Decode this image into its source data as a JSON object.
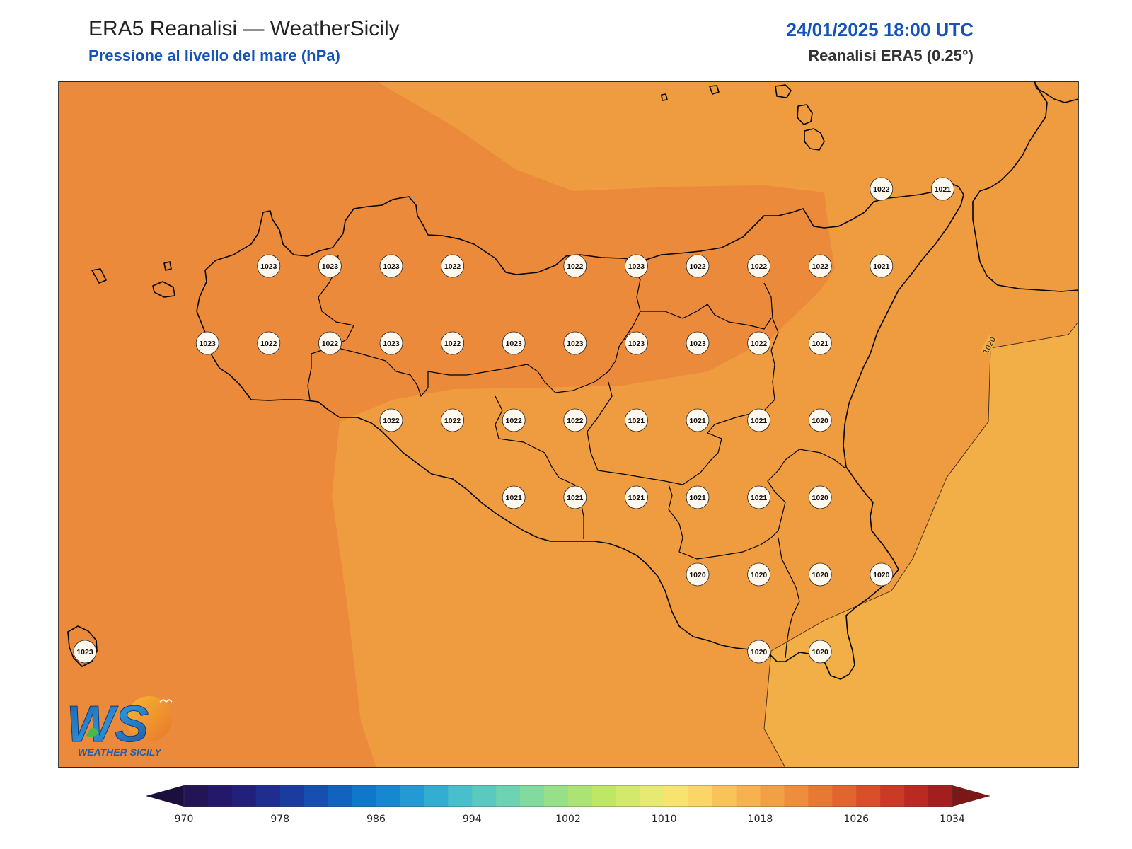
{
  "header": {
    "title": "ERA5 Reanalisi — WeatherSicily",
    "subtitle": "Pressione al livello del mare (hPa)",
    "datetime": "24/01/2025 18:00 UTC",
    "source": "Reanalisi ERA5 (0.25°)"
  },
  "map": {
    "region": "Sicily",
    "variable": "Mean sea level pressure",
    "units": "hPa",
    "contour_label": "1020",
    "fill_colors": {
      "1022_1024": "#eb8a3a",
      "1020_1022": "#ef9b40",
      "1018_1020": "#f2ae47"
    },
    "coastline_color": "#000000",
    "grid_values": [
      {
        "row": 0,
        "col": 13,
        "value": "1022"
      },
      {
        "row": 0,
        "col": 14,
        "value": "1021"
      },
      {
        "row": 1,
        "col": 3,
        "value": "1023"
      },
      {
        "row": 1,
        "col": 4,
        "value": "1023"
      },
      {
        "row": 1,
        "col": 5,
        "value": "1023"
      },
      {
        "row": 1,
        "col": 6,
        "value": "1022"
      },
      {
        "row": 1,
        "col": 8,
        "value": "1022"
      },
      {
        "row": 1,
        "col": 9,
        "value": "1023"
      },
      {
        "row": 1,
        "col": 10,
        "value": "1022"
      },
      {
        "row": 1,
        "col": 11,
        "value": "1022"
      },
      {
        "row": 1,
        "col": 12,
        "value": "1022"
      },
      {
        "row": 1,
        "col": 13,
        "value": "1021"
      },
      {
        "row": 2,
        "col": 2,
        "value": "1023"
      },
      {
        "row": 2,
        "col": 3,
        "value": "1022"
      },
      {
        "row": 2,
        "col": 4,
        "value": "1022"
      },
      {
        "row": 2,
        "col": 5,
        "value": "1023"
      },
      {
        "row": 2,
        "col": 6,
        "value": "1022"
      },
      {
        "row": 2,
        "col": 7,
        "value": "1023"
      },
      {
        "row": 2,
        "col": 8,
        "value": "1023"
      },
      {
        "row": 2,
        "col": 9,
        "value": "1023"
      },
      {
        "row": 2,
        "col": 10,
        "value": "1023"
      },
      {
        "row": 2,
        "col": 11,
        "value": "1022"
      },
      {
        "row": 2,
        "col": 12,
        "value": "1021"
      },
      {
        "row": 3,
        "col": 5,
        "value": "1022"
      },
      {
        "row": 3,
        "col": 6,
        "value": "1022"
      },
      {
        "row": 3,
        "col": 7,
        "value": "1022"
      },
      {
        "row": 3,
        "col": 8,
        "value": "1022"
      },
      {
        "row": 3,
        "col": 9,
        "value": "1021"
      },
      {
        "row": 3,
        "col": 10,
        "value": "1021"
      },
      {
        "row": 3,
        "col": 11,
        "value": "1021"
      },
      {
        "row": 3,
        "col": 12,
        "value": "1020"
      },
      {
        "row": 4,
        "col": 7,
        "value": "1021"
      },
      {
        "row": 4,
        "col": 8,
        "value": "1021"
      },
      {
        "row": 4,
        "col": 9,
        "value": "1021"
      },
      {
        "row": 4,
        "col": 10,
        "value": "1021"
      },
      {
        "row": 4,
        "col": 11,
        "value": "1021"
      },
      {
        "row": 4,
        "col": 12,
        "value": "1020"
      },
      {
        "row": 5,
        "col": 10,
        "value": "1020"
      },
      {
        "row": 5,
        "col": 11,
        "value": "1020"
      },
      {
        "row": 5,
        "col": 12,
        "value": "1020"
      },
      {
        "row": 5,
        "col": 13,
        "value": "1020"
      },
      {
        "row": 6,
        "col": 0,
        "value": "1023"
      },
      {
        "row": 6,
        "col": 11,
        "value": "1020"
      },
      {
        "row": 6,
        "col": 12,
        "value": "1020"
      }
    ]
  },
  "colorbar": {
    "min": 970,
    "max": 1034,
    "step": 2,
    "tick_labels": [
      "970",
      "978",
      "986",
      "994",
      "1002",
      "1010",
      "1018",
      "1026",
      "1034"
    ],
    "under_color": "#1a0f3d",
    "over_color": "#7a1818",
    "colors": [
      "#231456",
      "#24186a",
      "#23207c",
      "#1e2d8e",
      "#1a3c9e",
      "#1550b0",
      "#1263bf",
      "#0f78cb",
      "#1688d1",
      "#2499d3",
      "#33aed2",
      "#47bfcc",
      "#5cc9c0",
      "#6ed3b2",
      "#82db9e",
      "#97e088",
      "#abe474",
      "#bfe766",
      "#d3e96b",
      "#e6ea72",
      "#f6e46e",
      "#fbd565",
      "#f8c45a",
      "#f5b24f",
      "#f2a045",
      "#ee8d3c",
      "#e87934",
      "#e2642e",
      "#d84f2a",
      "#cb3a26",
      "#bb2a22",
      "#a31f1d"
    ]
  },
  "logo": {
    "mark": "WS",
    "name": "WEATHER SICILY"
  }
}
